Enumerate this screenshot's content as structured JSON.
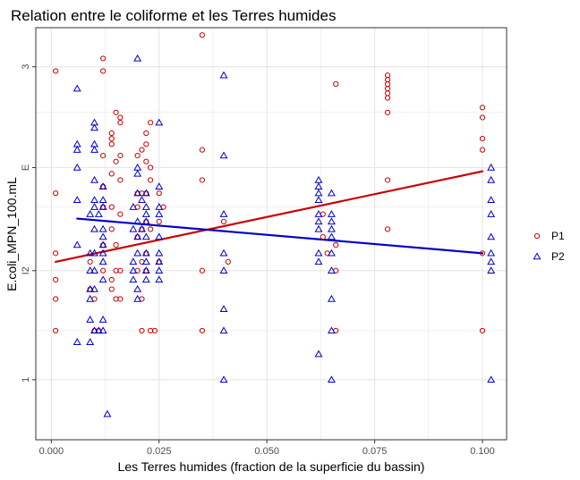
{
  "chart_data": {
    "type": "scatter",
    "title": "Relation entre le coliforme et les Terres humides",
    "xlabel": "Les Terres humides (fraction de la superficie du bassin)",
    "ylabel": "E.coli_MPN_100.mL",
    "x_scale": "linear",
    "y_scale": "log10",
    "xlim": [
      -0.0036,
      0.1056
    ],
    "ylim": [
      0.8,
      3.7
    ],
    "x_ticks": [
      0.0,
      0.025,
      0.05,
      0.075,
      0.1
    ],
    "x_tick_labels": [
      "0.000",
      "0.025",
      "0.050",
      "0.075",
      "0.100"
    ],
    "y_ticks": [
      1.0,
      1.5,
      2.2,
      3.2
    ],
    "y_tick_labels": [
      "1",
      "I2",
      "E",
      "3"
    ],
    "y_minor_ticks": [
      1.2,
      1.9,
      2.7
    ],
    "grid": true,
    "legend_position": "right",
    "series": [
      {
        "name": "P1",
        "color": "#cc0000",
        "marker": "circle",
        "points": [
          [
            0.001,
            3.15
          ],
          [
            0.001,
            2.0
          ],
          [
            0.001,
            1.6
          ],
          [
            0.001,
            1.45
          ],
          [
            0.001,
            1.35
          ],
          [
            0.001,
            1.2
          ],
          [
            0.009,
            1.55
          ],
          [
            0.009,
            1.4
          ],
          [
            0.01,
            1.35
          ],
          [
            0.01,
            1.2
          ],
          [
            0.011,
            1.2
          ],
          [
            0.012,
            3.3
          ],
          [
            0.012,
            3.15
          ],
          [
            0.012,
            2.3
          ],
          [
            0.012,
            2.05
          ],
          [
            0.012,
            1.9
          ],
          [
            0.012,
            1.65
          ],
          [
            0.012,
            1.5
          ],
          [
            0.014,
            2.45
          ],
          [
            0.014,
            1.9
          ],
          [
            0.014,
            1.75
          ],
          [
            0.014,
            1.45
          ],
          [
            0.014,
            1.4
          ],
          [
            0.014,
            2.5
          ],
          [
            0.014,
            2.4
          ],
          [
            0.014,
            2.15
          ],
          [
            0.015,
            2.7
          ],
          [
            0.015,
            2.25
          ],
          [
            0.015,
            1.65
          ],
          [
            0.015,
            1.5
          ],
          [
            0.015,
            1.35
          ],
          [
            0.016,
            2.65
          ],
          [
            0.016,
            2.6
          ],
          [
            0.016,
            2.3
          ],
          [
            0.016,
            2.1
          ],
          [
            0.016,
            1.85
          ],
          [
            0.016,
            1.5
          ],
          [
            0.016,
            1.35
          ],
          [
            0.02,
            2.3
          ],
          [
            0.02,
            2.0
          ],
          [
            0.02,
            1.9
          ],
          [
            0.02,
            1.7
          ],
          [
            0.02,
            1.5
          ],
          [
            0.021,
            2.35
          ],
          [
            0.021,
            2.0
          ],
          [
            0.021,
            1.75
          ],
          [
            0.021,
            1.55
          ],
          [
            0.021,
            1.35
          ],
          [
            0.021,
            1.2
          ],
          [
            0.022,
            2.5
          ],
          [
            0.022,
            2.4
          ],
          [
            0.022,
            2.25
          ],
          [
            0.022,
            2.0
          ],
          [
            0.022,
            1.8
          ],
          [
            0.022,
            1.6
          ],
          [
            0.022,
            1.5
          ],
          [
            0.023,
            2.6
          ],
          [
            0.023,
            2.2
          ],
          [
            0.023,
            2.1
          ],
          [
            0.023,
            1.75
          ],
          [
            0.023,
            1.2
          ],
          [
            0.024,
            1.2
          ],
          [
            0.025,
            2.0
          ],
          [
            0.025,
            1.8
          ],
          [
            0.025,
            1.55
          ],
          [
            0.026,
            1.9
          ],
          [
            0.035,
            3.6
          ],
          [
            0.035,
            2.35
          ],
          [
            0.035,
            2.1
          ],
          [
            0.035,
            1.5
          ],
          [
            0.035,
            1.2
          ],
          [
            0.04,
            1.8
          ],
          [
            0.041,
            1.55
          ],
          [
            0.063,
            1.85
          ],
          [
            0.063,
            1.7
          ],
          [
            0.064,
            1.6
          ],
          [
            0.066,
            3.0
          ],
          [
            0.066,
            1.65
          ],
          [
            0.066,
            1.5
          ],
          [
            0.066,
            1.2
          ],
          [
            0.078,
            3.1
          ],
          [
            0.078,
            3.05
          ],
          [
            0.078,
            3.0
          ],
          [
            0.078,
            2.95
          ],
          [
            0.078,
            2.9
          ],
          [
            0.078,
            2.85
          ],
          [
            0.078,
            2.7
          ],
          [
            0.078,
            2.1
          ],
          [
            0.078,
            1.75
          ],
          [
            0.1,
            2.75
          ],
          [
            0.1,
            2.65
          ],
          [
            0.1,
            2.45
          ],
          [
            0.1,
            2.35
          ],
          [
            0.1,
            1.6
          ],
          [
            0.1,
            1.2
          ]
        ],
        "trend": [
          [
            0.001,
            1.55
          ],
          [
            0.1,
            2.17
          ]
        ]
      },
      {
        "name": "P2",
        "color": "#0000cc",
        "marker": "triangle",
        "points": [
          [
            0.006,
            2.95
          ],
          [
            0.006,
            2.4
          ],
          [
            0.006,
            2.35
          ],
          [
            0.006,
            2.2
          ],
          [
            0.006,
            1.95
          ],
          [
            0.006,
            1.65
          ],
          [
            0.006,
            1.15
          ],
          [
            0.009,
            1.85
          ],
          [
            0.009,
            1.6
          ],
          [
            0.009,
            1.5
          ],
          [
            0.009,
            1.4
          ],
          [
            0.009,
            1.35
          ],
          [
            0.009,
            1.25
          ],
          [
            0.009,
            1.15
          ],
          [
            0.01,
            2.6
          ],
          [
            0.01,
            2.55
          ],
          [
            0.01,
            2.4
          ],
          [
            0.01,
            2.35
          ],
          [
            0.01,
            2.1
          ],
          [
            0.01,
            1.95
          ],
          [
            0.01,
            1.9
          ],
          [
            0.01,
            1.75
          ],
          [
            0.01,
            1.6
          ],
          [
            0.01,
            1.5
          ],
          [
            0.01,
            1.4
          ],
          [
            0.01,
            1.2
          ],
          [
            0.011,
            1.85
          ],
          [
            0.011,
            1.2
          ],
          [
            0.012,
            2.05
          ],
          [
            0.012,
            1.95
          ],
          [
            0.012,
            1.9
          ],
          [
            0.012,
            1.75
          ],
          [
            0.012,
            1.7
          ],
          [
            0.012,
            1.65
          ],
          [
            0.012,
            1.6
          ],
          [
            0.012,
            1.55
          ],
          [
            0.012,
            1.45
          ],
          [
            0.012,
            1.25
          ],
          [
            0.012,
            1.2
          ],
          [
            0.013,
            0.88
          ],
          [
            0.019,
            1.9
          ],
          [
            0.019,
            1.75
          ],
          [
            0.019,
            1.55
          ],
          [
            0.019,
            1.5
          ],
          [
            0.019,
            1.45
          ],
          [
            0.02,
            3.3
          ],
          [
            0.02,
            2.2
          ],
          [
            0.02,
            2.15
          ],
          [
            0.02,
            2.0
          ],
          [
            0.02,
            1.8
          ],
          [
            0.02,
            1.7
          ],
          [
            0.02,
            1.6
          ],
          [
            0.02,
            1.4
          ],
          [
            0.02,
            1.35
          ],
          [
            0.021,
            1.95
          ],
          [
            0.021,
            1.75
          ],
          [
            0.022,
            2.0
          ],
          [
            0.022,
            1.9
          ],
          [
            0.022,
            1.85
          ],
          [
            0.022,
            1.8
          ],
          [
            0.022,
            1.7
          ],
          [
            0.022,
            1.6
          ],
          [
            0.022,
            1.55
          ],
          [
            0.022,
            1.5
          ],
          [
            0.022,
            1.45
          ],
          [
            0.025,
            2.6
          ],
          [
            0.025,
            2.05
          ],
          [
            0.025,
            1.9
          ],
          [
            0.025,
            1.85
          ],
          [
            0.025,
            1.7
          ],
          [
            0.025,
            1.6
          ],
          [
            0.025,
            1.55
          ],
          [
            0.025,
            1.5
          ],
          [
            0.025,
            1.45
          ],
          [
            0.04,
            3.1
          ],
          [
            0.04,
            2.3
          ],
          [
            0.04,
            1.85
          ],
          [
            0.04,
            1.6
          ],
          [
            0.04,
            1.5
          ],
          [
            0.04,
            1.3
          ],
          [
            0.04,
            1.2
          ],
          [
            0.04,
            1.0
          ],
          [
            0.062,
            2.1
          ],
          [
            0.062,
            2.05
          ],
          [
            0.062,
            2.0
          ],
          [
            0.062,
            1.95
          ],
          [
            0.062,
            1.85
          ],
          [
            0.062,
            1.8
          ],
          [
            0.062,
            1.75
          ],
          [
            0.062,
            1.6
          ],
          [
            0.062,
            1.55
          ],
          [
            0.062,
            1.1
          ],
          [
            0.065,
            2.0
          ],
          [
            0.065,
            1.85
          ],
          [
            0.065,
            1.8
          ],
          [
            0.065,
            1.75
          ],
          [
            0.065,
            1.7
          ],
          [
            0.065,
            1.6
          ],
          [
            0.065,
            1.5
          ],
          [
            0.065,
            1.35
          ],
          [
            0.065,
            1.2
          ],
          [
            0.065,
            1.0
          ],
          [
            0.102,
            2.2
          ],
          [
            0.102,
            2.1
          ],
          [
            0.102,
            1.95
          ],
          [
            0.102,
            1.85
          ],
          [
            0.102,
            1.7
          ],
          [
            0.102,
            1.6
          ],
          [
            0.102,
            1.55
          ],
          [
            0.102,
            1.5
          ],
          [
            0.102,
            1.0
          ]
        ],
        "trend": [
          [
            0.006,
            1.82
          ],
          [
            0.1,
            1.6
          ]
        ]
      }
    ]
  }
}
